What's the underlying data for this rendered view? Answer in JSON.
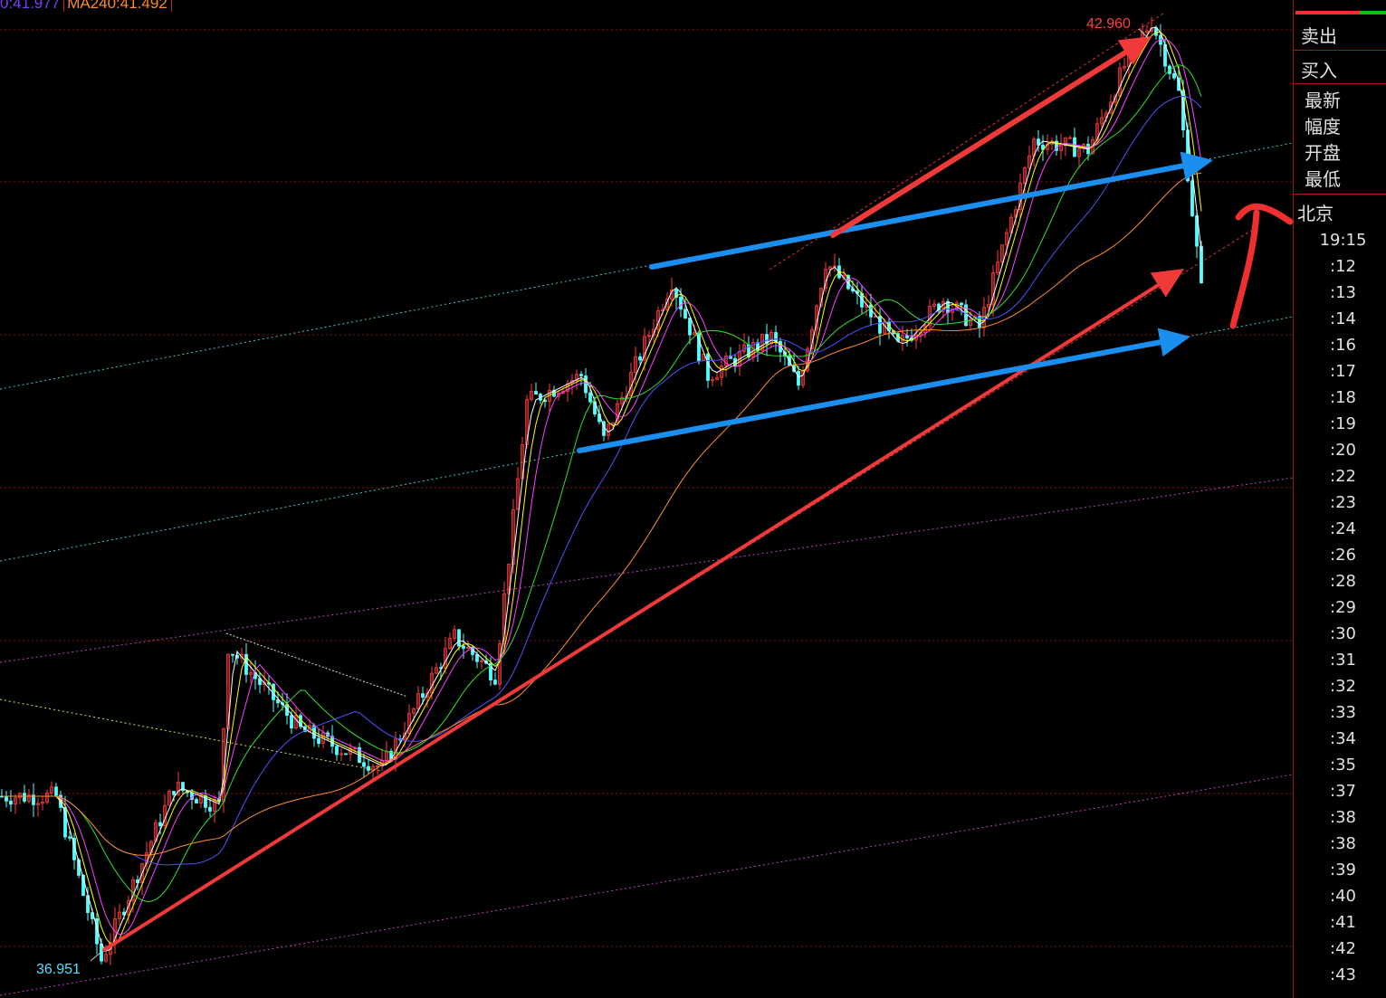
{
  "legend": {
    "ma120": "0:41.977",
    "ma240": "MA240:41.492"
  },
  "annotations": {
    "high_label": "42.960",
    "low_label": "36.951"
  },
  "colors": {
    "up": "#ff3b3b",
    "down": "#54ffff",
    "ma5": "#ffffff",
    "ma10": "#ffff00",
    "ma20": "#ff40ff",
    "ma60": "#30e030",
    "ma120": "#5050ff",
    "ma240": "#ff8c2a",
    "arrow_red": "#f03a3a",
    "arrow_blue": "#1a8ff0",
    "grid": "#8a1010"
  },
  "chart_data": {
    "type": "candlestick",
    "ylim": [
      36.75,
      43.08
    ],
    "xlabel": "",
    "ylabel": "",
    "grid": true,
    "price_path": {
      "x": [
        0,
        12,
        22,
        38,
        48,
        50,
        66,
        84,
        100,
        109,
        116,
        128,
        133,
        148,
        156,
        170,
        176,
        182,
        198,
        208,
        216,
        228,
        240,
        248,
        254,
        260,
        265
      ],
      "y": [
        38.03,
        38.03,
        36.99,
        38.09,
        37.97,
        38.98,
        38.45,
        38.21,
        39.04,
        38.8,
        40.53,
        40.7,
        40.29,
        41.3,
        40.7,
        40.94,
        40.64,
        41.42,
        40.88,
        41.18,
        41.0,
        42.19,
        42.13,
        42.66,
        42.95,
        42.49,
        41.24
      ]
    },
    "high": 42.96,
    "low": 36.951,
    "drawn_objects": [
      "red up arrows",
      "blue up arrows",
      "cyan channel lines",
      "magenta channel lines",
      "hand-drawn red up arrow"
    ]
  },
  "panel": {
    "sell": "卖出",
    "buy": "买入",
    "quote_labels": [
      "最新",
      "幅度",
      "开盘",
      "最低"
    ],
    "city": "北京",
    "times": [
      "19:15",
      ":12",
      ":13",
      ":14",
      ":16",
      ":17",
      ":18",
      ":19",
      ":20",
      ":22",
      ":23",
      ":24",
      ":26",
      ":28",
      ":29",
      ":30",
      ":31",
      ":32",
      ":33",
      ":34",
      ":35",
      ":37",
      ":38",
      ":38",
      ":39",
      ":40",
      ":41",
      ":42",
      ":43"
    ],
    "ratio_bar_red": 0.7
  }
}
